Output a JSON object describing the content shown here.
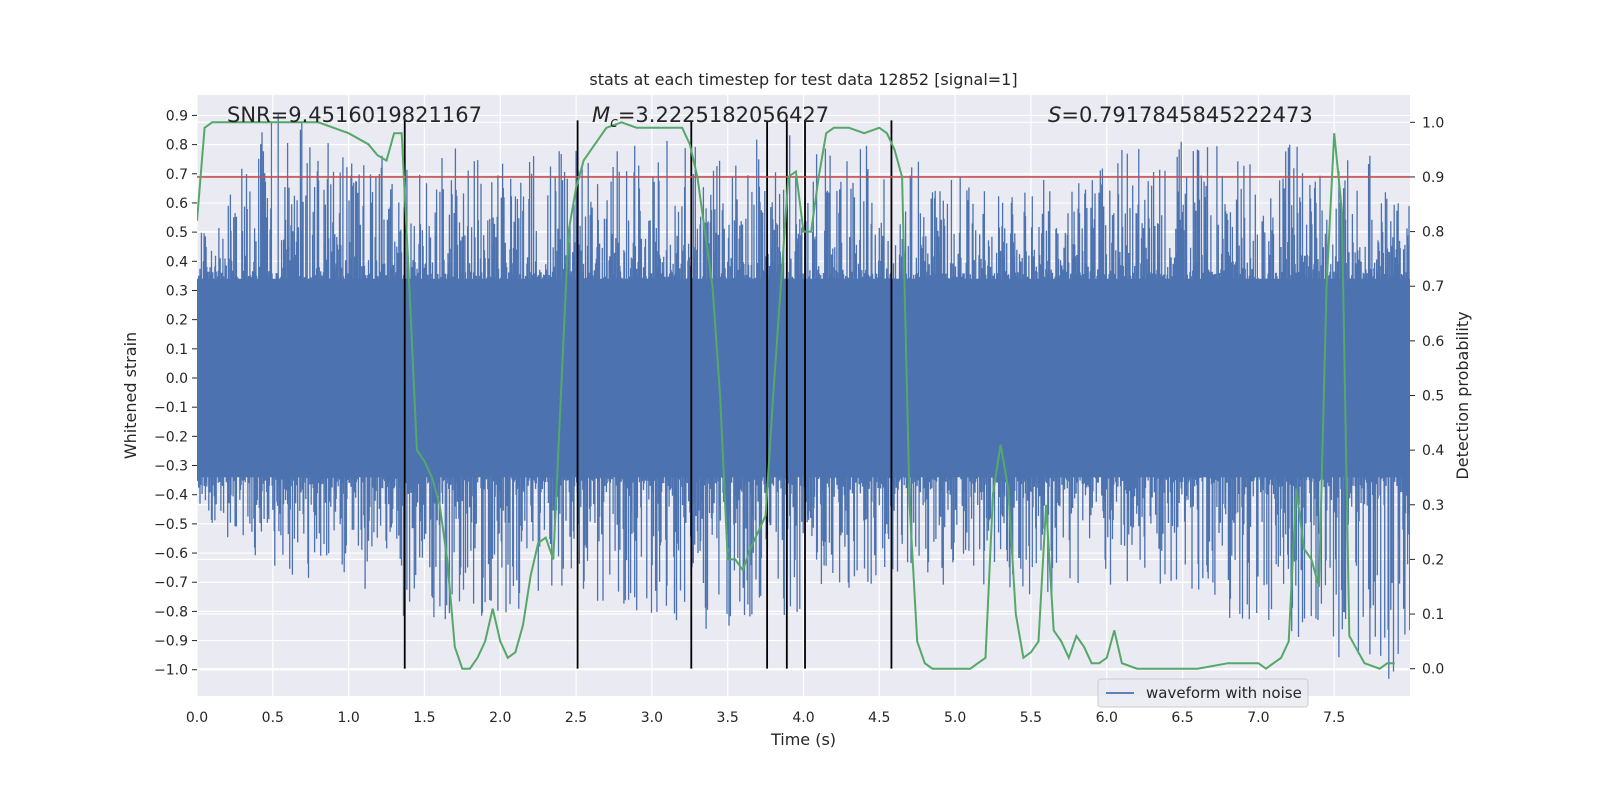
{
  "chart_data": {
    "type": "line",
    "title": "stats at each timestep for test data 12852 [signal=1]",
    "xlabel": "Time (s)",
    "ylabel_left": "Whitened strain",
    "ylabel_right": "Detection probability",
    "xlim": [
      0.0,
      8.0
    ],
    "ylim_left": [
      -1.09,
      0.97
    ],
    "ylim_right": [
      -0.05,
      1.05
    ],
    "x_ticks": [
      "0.0",
      "0.5",
      "1.0",
      "1.5",
      "2.0",
      "2.5",
      "3.0",
      "3.5",
      "4.0",
      "4.5",
      "5.0",
      "5.5",
      "6.0",
      "6.5",
      "7.0",
      "7.5"
    ],
    "y_left_ticks": [
      "0.9",
      "0.8",
      "0.7",
      "0.6",
      "0.5",
      "0.4",
      "0.3",
      "0.2",
      "0.1",
      "0.0",
      "−0.1",
      "−0.2",
      "−0.3",
      "−0.4",
      "−0.5",
      "−0.6",
      "−0.7",
      "−0.8",
      "−0.9",
      "−1.0"
    ],
    "y_right_ticks": [
      "1.0",
      "0.9",
      "0.8",
      "0.7",
      "0.6",
      "0.5",
      "0.4",
      "0.3",
      "0.2",
      "0.1",
      "0.0"
    ],
    "grid": true,
    "legend": {
      "position": "lower-right",
      "entries": [
        "waveform with noise"
      ]
    },
    "annotations": {
      "snr": "SNR=9.4516019821167",
      "mc_symbol": "M",
      "mc_sub": "c",
      "mc_value": "=3.2225182056427",
      "s_symbol": "S",
      "s_value": "=0.7917845845222473"
    },
    "threshold": {
      "value": 0.9,
      "axis": "right",
      "color": "#c44e52"
    },
    "vertical_markers": [
      1.37,
      2.51,
      3.26,
      3.76,
      3.89,
      4.01,
      4.58
    ],
    "colors": {
      "waveform": "#4c72b0",
      "probability": "#55a868",
      "threshold": "#c44e52",
      "markers": "#000000",
      "background": "#eaeaf2",
      "grid": "#ffffff"
    },
    "series": [
      {
        "name": "waveform with noise",
        "axis": "left",
        "description_envelope": {
          "x": [
            0.0,
            0.5,
            1.0,
            1.5,
            2.0,
            2.5,
            3.0,
            3.5,
            4.0,
            4.5,
            5.0,
            5.5,
            6.0,
            6.5,
            7.0,
            7.5,
            8.0
          ],
          "upper_peak": [
            0.45,
            0.88,
            0.8,
            0.78,
            0.75,
            0.77,
            0.78,
            0.75,
            0.8,
            0.77,
            0.65,
            0.62,
            0.75,
            0.78,
            0.73,
            0.83,
            0.6
          ],
          "lower_peak": [
            -0.45,
            -0.62,
            -0.7,
            -0.85,
            -0.82,
            -0.7,
            -0.81,
            -0.83,
            -0.75,
            -0.71,
            -0.65,
            -0.75,
            -0.67,
            -0.68,
            -0.87,
            -0.92,
            -1.0
          ],
          "core_amplitude": 0.3
        }
      },
      {
        "axis": "right",
        "x": [
          0.0,
          0.05,
          0.1,
          0.3,
          0.5,
          0.8,
          1.0,
          1.13,
          1.19,
          1.25,
          1.3,
          1.35,
          1.4,
          1.45,
          1.5,
          1.55,
          1.6,
          1.65,
          1.7,
          1.75,
          1.8,
          1.85,
          1.9,
          1.95,
          2.0,
          2.05,
          2.1,
          2.15,
          2.2,
          2.25,
          2.3,
          2.35,
          2.4,
          2.45,
          2.5,
          2.55,
          2.6,
          2.7,
          2.8,
          2.9,
          3.0,
          3.1,
          3.2,
          3.25,
          3.3,
          3.35,
          3.4,
          3.45,
          3.5,
          3.55,
          3.6,
          3.65,
          3.7,
          3.75,
          3.8,
          3.85,
          3.9,
          3.95,
          4.0,
          4.05,
          4.1,
          4.15,
          4.2,
          4.3,
          4.4,
          4.5,
          4.55,
          4.6,
          4.65,
          4.7,
          4.75,
          4.8,
          4.85,
          4.9,
          5.0,
          5.1,
          5.15,
          5.2,
          5.25,
          5.3,
          5.35,
          5.4,
          5.45,
          5.5,
          5.55,
          5.6,
          5.65,
          5.7,
          5.75,
          5.8,
          5.85,
          5.9,
          5.95,
          6.0,
          6.05,
          6.1,
          6.2,
          6.4,
          6.6,
          6.8,
          7.0,
          7.05,
          7.1,
          7.15,
          7.2,
          7.25,
          7.3,
          7.35,
          7.4,
          7.45,
          7.5,
          7.55,
          7.6,
          7.7,
          7.8,
          7.85,
          7.9
        ],
        "values": [
          0.82,
          0.99,
          1.0,
          1.0,
          1.0,
          1.0,
          0.98,
          0.96,
          0.94,
          0.93,
          0.98,
          0.98,
          0.7,
          0.4,
          0.38,
          0.35,
          0.3,
          0.2,
          0.04,
          0.0,
          0.0,
          0.02,
          0.05,
          0.11,
          0.05,
          0.02,
          0.03,
          0.08,
          0.17,
          0.23,
          0.24,
          0.2,
          0.5,
          0.8,
          0.88,
          0.93,
          0.95,
          0.99,
          1.0,
          0.99,
          0.99,
          0.99,
          0.99,
          0.96,
          0.9,
          0.8,
          0.7,
          0.5,
          0.2,
          0.2,
          0.18,
          0.22,
          0.25,
          0.28,
          0.5,
          0.7,
          0.9,
          0.91,
          0.8,
          0.8,
          0.9,
          0.98,
          0.99,
          0.99,
          0.98,
          0.99,
          0.98,
          0.95,
          0.9,
          0.3,
          0.05,
          0.01,
          0.0,
          0.0,
          0.0,
          0.0,
          0.01,
          0.02,
          0.32,
          0.41,
          0.33,
          0.1,
          0.02,
          0.03,
          0.05,
          0.3,
          0.07,
          0.05,
          0.02,
          0.06,
          0.04,
          0.01,
          0.01,
          0.02,
          0.07,
          0.01,
          0.0,
          0.0,
          0.0,
          0.01,
          0.01,
          0.0,
          0.01,
          0.02,
          0.05,
          0.33,
          0.22,
          0.2,
          0.15,
          0.7,
          0.98,
          0.84,
          0.06,
          0.01,
          0.0,
          0.01,
          0.01
        ]
      }
    ]
  }
}
